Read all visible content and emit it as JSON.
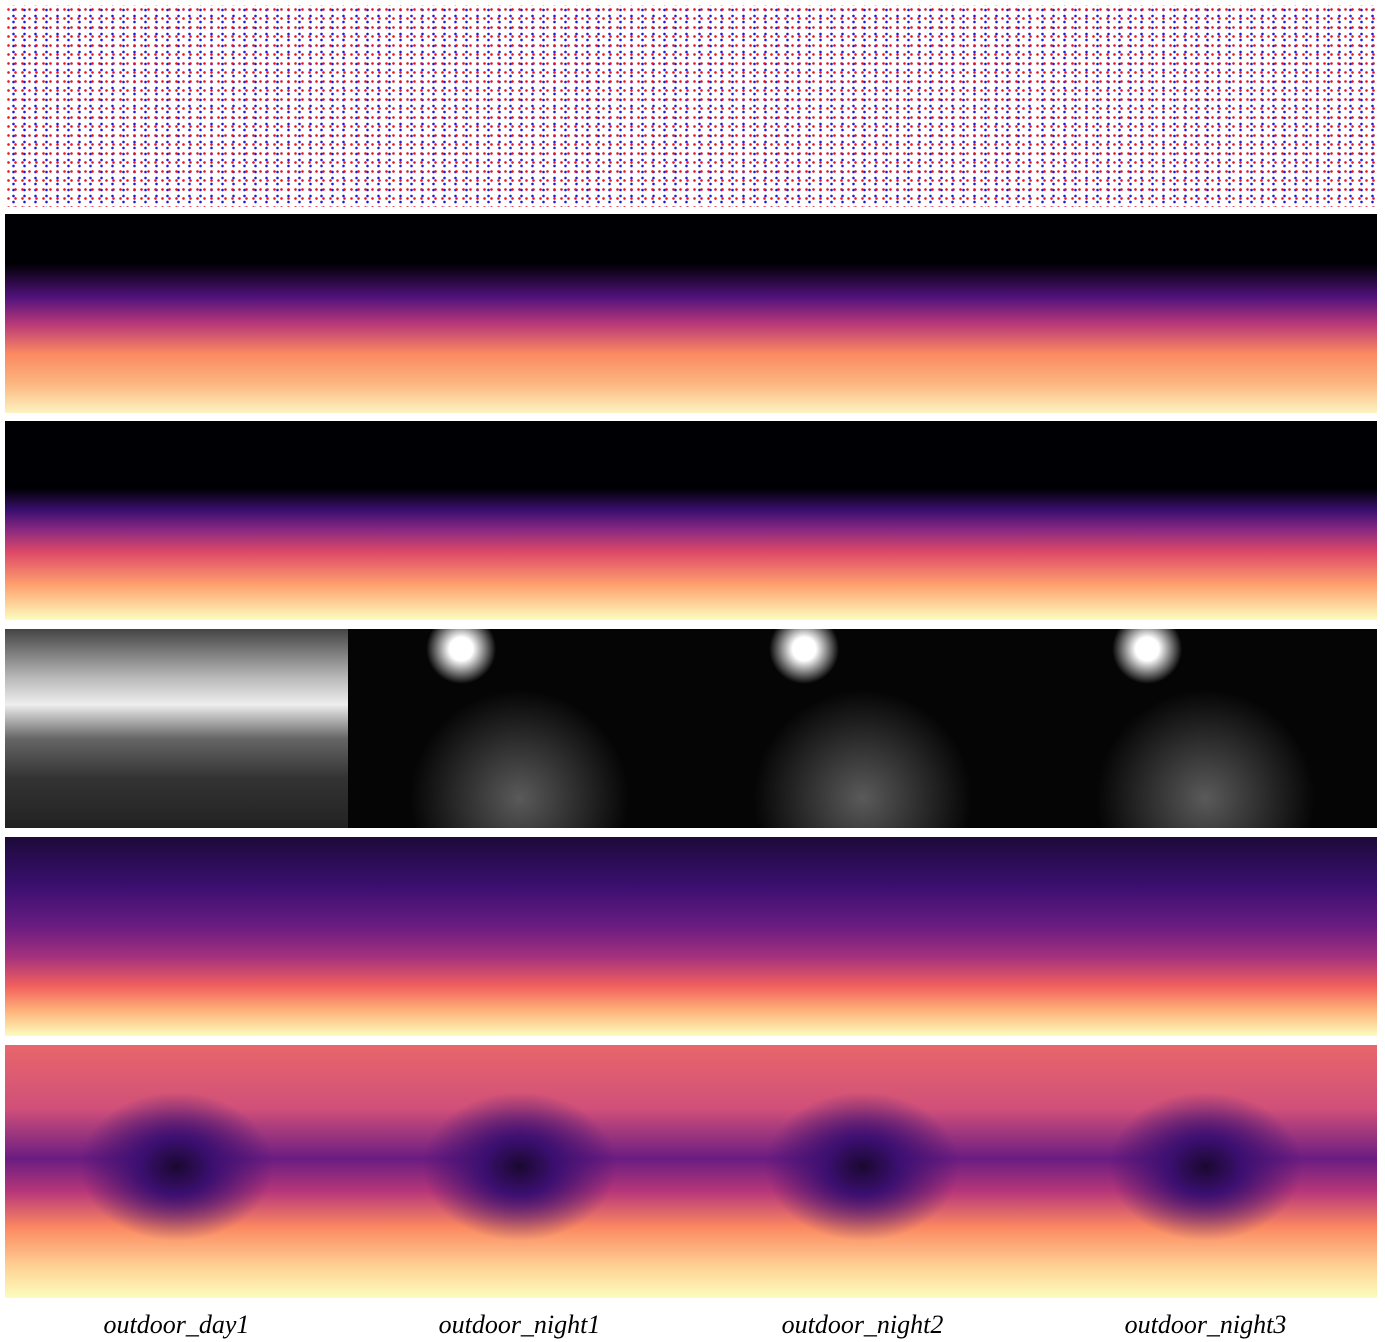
{
  "captions": [
    "outdoor_day1",
    "outdoor_night1",
    "outdoor_night2",
    "outdoor_night3"
  ]
}
